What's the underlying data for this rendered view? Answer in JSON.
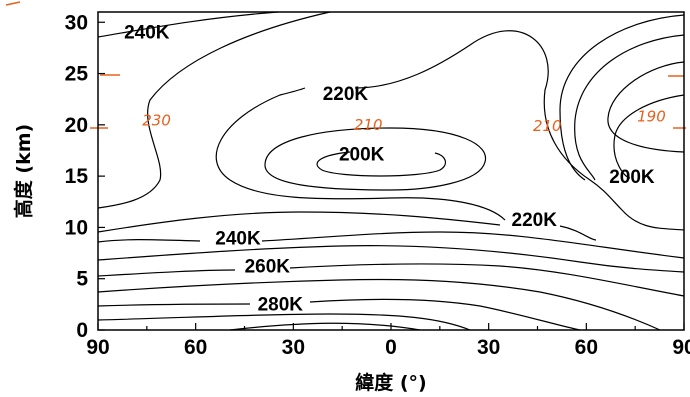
{
  "chart_data": {
    "type": "contour",
    "xlabel": "緯度 (°)",
    "ylabel": "高度 (km)",
    "x_ticks": [
      "90",
      "60",
      "30",
      "0",
      "30",
      "60",
      "90"
    ],
    "y_ticks": [
      "0",
      "5",
      "10",
      "15",
      "20",
      "25",
      "30"
    ],
    "xlim": [
      -90,
      90
    ],
    "ylim": [
      0,
      31
    ],
    "contour_interval_K": 10,
    "contour_labels": [
      {
        "text": "240K",
        "lat": -75,
        "alt": 29.1
      },
      {
        "text": "220K",
        "lat": -14,
        "alt": 23.1
      },
      {
        "text": "200K",
        "lat": -9,
        "alt": 17.2
      },
      {
        "text": "200K",
        "lat": 74,
        "alt": 15.0
      },
      {
        "text": "220K",
        "lat": 44,
        "alt": 10.8
      },
      {
        "text": "240K",
        "lat": -47,
        "alt": 9.0
      },
      {
        "text": "260K",
        "lat": -38,
        "alt": 6.3
      },
      {
        "text": "280K",
        "lat": -34,
        "alt": 2.6
      }
    ],
    "handwritten_annotations": [
      {
        "text": "230",
        "lat": -72,
        "alt": 20.4
      },
      {
        "text": "210",
        "lat": -7,
        "alt": 20.0
      },
      {
        "text": "210",
        "lat": 48,
        "alt": 19.9
      },
      {
        "text": "190",
        "lat": 80,
        "alt": 20.8
      }
    ],
    "colors": {
      "contour": "#000000",
      "annotation": "#e8601c"
    }
  }
}
